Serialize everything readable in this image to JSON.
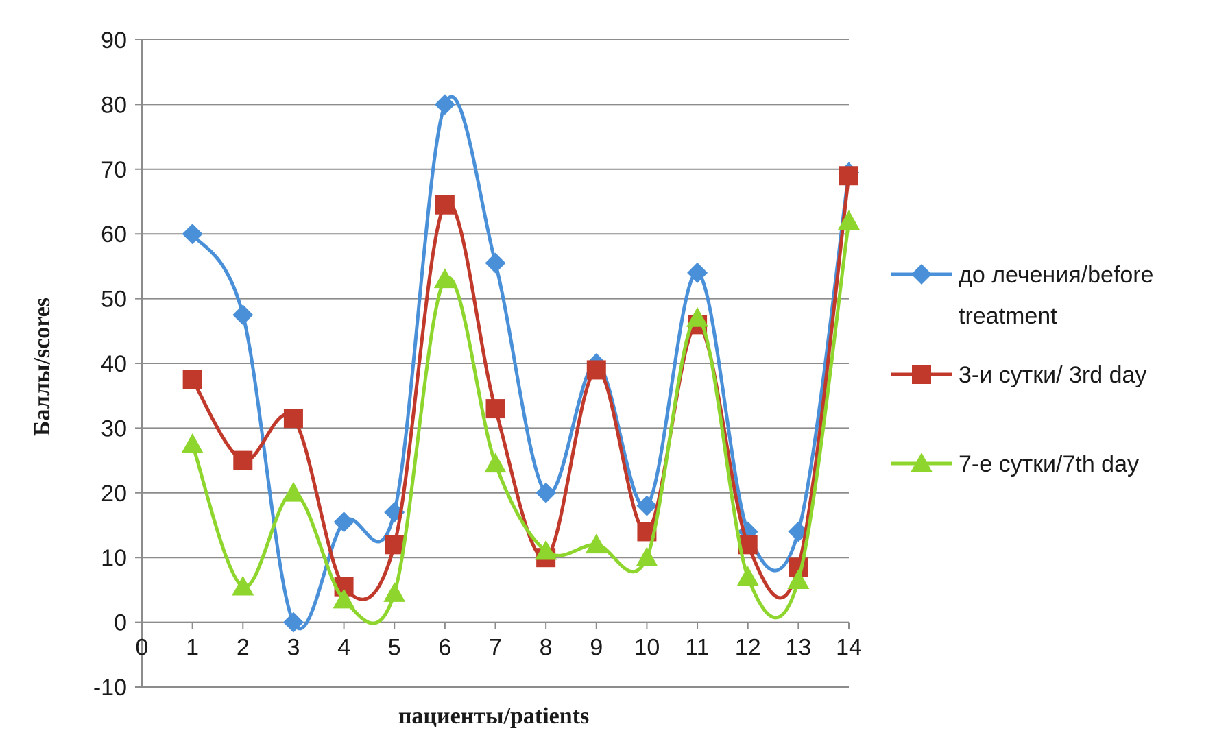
{
  "chart_data": {
    "type": "line",
    "xlabel": "пациенты/patients",
    "ylabel": "Баллы/scores",
    "xlim": [
      0,
      14
    ],
    "ylim": [
      -10,
      90
    ],
    "x_ticks": [
      0,
      1,
      2,
      3,
      4,
      5,
      6,
      7,
      8,
      9,
      10,
      11,
      12,
      13,
      14
    ],
    "y_ticks": [
      -10,
      0,
      10,
      20,
      30,
      40,
      50,
      60,
      70,
      80,
      90
    ],
    "grid": "horizontal",
    "smooth": true,
    "legend_position": "right",
    "x": [
      1,
      2,
      3,
      4,
      5,
      6,
      7,
      8,
      9,
      10,
      11,
      12,
      13,
      14
    ],
    "series": [
      {
        "name": "до лечения/before treatment",
        "name_lines": [
          "до лечения/before",
          "treatment"
        ],
        "marker": "diamond",
        "color": "#4a90d9",
        "values": [
          60,
          47.5,
          0,
          15.5,
          17,
          80,
          55.5,
          20,
          40,
          18,
          54,
          14,
          14,
          69.5
        ]
      },
      {
        "name": "3-и сутки/ 3rd day",
        "name_lines": [
          "3-и сутки/ 3rd day"
        ],
        "marker": "square",
        "color": "#c0392b",
        "values": [
          37.5,
          25,
          31.5,
          5.5,
          12,
          64.5,
          33,
          10,
          39,
          14,
          46,
          12,
          8.5,
          69
        ]
      },
      {
        "name": "7-е сутки/7th day",
        "name_lines": [
          "7-е сутки/7th day"
        ],
        "marker": "triangle",
        "color": "#8ed62e",
        "values": [
          27.5,
          5.5,
          20,
          3.5,
          4.5,
          53,
          24.5,
          11,
          12,
          10,
          47,
          7,
          6.5,
          62
        ]
      }
    ]
  }
}
